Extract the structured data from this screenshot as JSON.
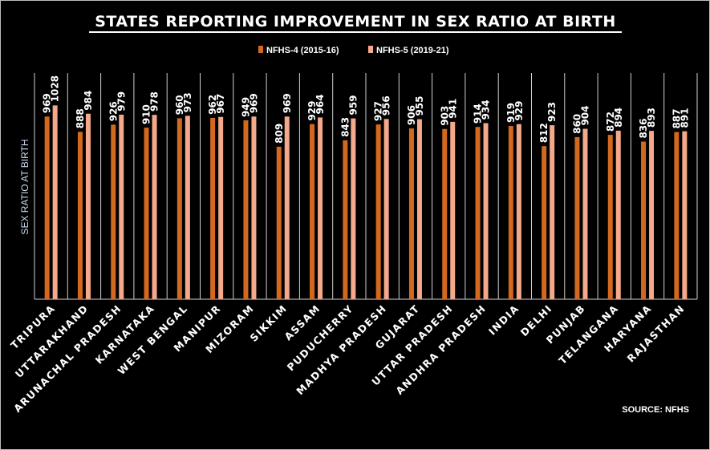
{
  "chart_data": {
    "type": "bar",
    "title": "STATES REPORTING IMPROVEMENT IN SEX RATIO AT BIRTH",
    "xlabel": "",
    "ylabel": "SEX RATIO AT BIRTH",
    "ylim": [
      0,
      1200
    ],
    "grid": "vertical category separators",
    "legend_position": "top",
    "source": "SOURCE: NFHS",
    "categories": [
      "TRIPURA",
      "UTTARAKHAND",
      "ARUNACHAL PRADESH",
      "KARNATAKA",
      "WEST BENGAL",
      "MANIPUR",
      "MIZORAM",
      "SIKKIM",
      "ASSAM",
      "PUDUCHERRY",
      "MADHYA PRADESH",
      "GUJARAT",
      "UTTAR PRADESH",
      "ANDHRA PRADESH",
      "INDIA",
      "DELHI",
      "PUNJAB",
      "TELANGANA",
      "HARYANA",
      "RAJASTHAN"
    ],
    "series": [
      {
        "name": "NFHS-4 (2015-16)",
        "color": "#d2691e",
        "values": [
          969,
          888,
          926,
          910,
          960,
          962,
          949,
          809,
          929,
          843,
          927,
          906,
          903,
          914,
          919,
          812,
          860,
          872,
          836,
          887
        ]
      },
      {
        "name": "NFHS-5 (2019-21)",
        "color": "#f4a98a",
        "values": [
          1028,
          984,
          979,
          978,
          973,
          967,
          969,
          969,
          964,
          959,
          956,
          955,
          941,
          934,
          929,
          923,
          904,
          894,
          893,
          891
        ]
      }
    ]
  }
}
